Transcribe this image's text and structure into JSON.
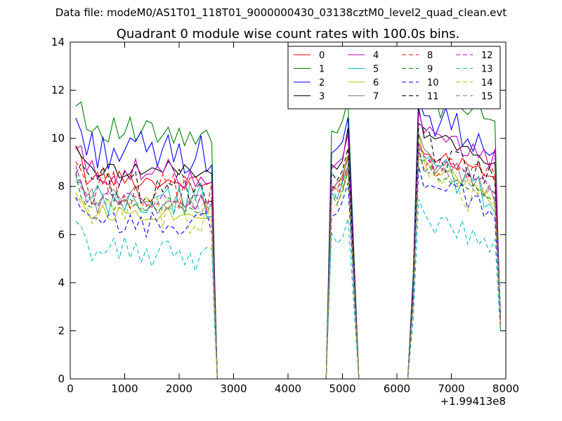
{
  "chart_data": {
    "type": "line",
    "suptitle": "Data file: modeM0/AS1T01_118T01_9000000430_03138cztM0_level2_quad_clean.evt",
    "title": "Quadrant 0 module wise count rates with 100.0s bins.",
    "xlabel": "",
    "ylabel": "",
    "x_offset_label": "+1.99413e8",
    "xlim": [
      0,
      8000
    ],
    "ylim": [
      0,
      14
    ],
    "xticks": [
      "0",
      "1000",
      "2000",
      "3000",
      "4000",
      "5000",
      "6000",
      "7000",
      "8000"
    ],
    "yticks": [
      "0",
      "2",
      "4",
      "6",
      "8",
      "10",
      "12",
      "14"
    ],
    "legend_position": "top-right",
    "legend_columns": 4,
    "series": [
      {
        "name": "0",
        "color": "#ff0000",
        "dash": "solid",
        "level_a": 8.4,
        "level_b": 8.1,
        "level_c": 9.4,
        "level_d": 8.6
      },
      {
        "name": "1",
        "color": "#008000",
        "dash": "solid",
        "level_a": 10.6,
        "level_b": 9.8,
        "level_c": 11.6,
        "level_d": 10.8
      },
      {
        "name": "2",
        "color": "#0000ff",
        "dash": "solid",
        "level_a": 9.6,
        "level_b": 9.3,
        "level_c": 11.0,
        "level_d": 9.8
      },
      {
        "name": "3",
        "color": "#000000",
        "dash": "solid",
        "level_a": 8.7,
        "level_b": 8.7,
        "level_c": 10.4,
        "level_d": 9.0
      },
      {
        "name": "4",
        "color": "#bf00bf",
        "dash": "solid",
        "level_a": 8.6,
        "level_b": 8.5,
        "level_c": 10.2,
        "level_d": 9.1
      },
      {
        "name": "5",
        "color": "#00bfbf",
        "dash": "solid",
        "level_a": 7.2,
        "level_b": 7.5,
        "level_c": 9.0,
        "level_d": 7.6
      },
      {
        "name": "6",
        "color": "#bfbf00",
        "dash": "solid",
        "level_a": 6.9,
        "level_b": 6.9,
        "level_c": 9.3,
        "level_d": 7.4
      },
      {
        "name": "7",
        "color": "#808080",
        "dash": "solid",
        "level_a": 7.5,
        "level_b": 7.4,
        "level_c": 9.3,
        "level_d": 7.8
      },
      {
        "name": "8",
        "color": "#ff0000",
        "dash": "dashed",
        "level_a": 8.0,
        "level_b": 7.7,
        "level_c": 9.0,
        "level_d": 8.2
      },
      {
        "name": "9",
        "color": "#008000",
        "dash": "dashed",
        "level_a": 7.3,
        "level_b": 7.2,
        "level_c": 8.7,
        "level_d": 7.6
      },
      {
        "name": "10",
        "color": "#0000ff",
        "dash": "dashed",
        "level_a": 6.4,
        "level_b": 6.4,
        "level_c": 8.3,
        "level_d": 7.0
      },
      {
        "name": "11",
        "color": "#000000",
        "dash": "dashed",
        "level_a": 8.1,
        "level_b": 8.0,
        "level_c": 9.8,
        "level_d": 8.4
      },
      {
        "name": "12",
        "color": "#bf00bf",
        "dash": "dashed",
        "level_a": 7.6,
        "level_b": 7.3,
        "level_c": 9.2,
        "level_d": 8.0
      },
      {
        "name": "13",
        "color": "#00bfbf",
        "dash": "dashed",
        "level_a": 5.5,
        "level_b": 5.0,
        "level_c": 6.6,
        "level_d": 5.7
      },
      {
        "name": "14",
        "color": "#bfbf00",
        "dash": "dashed",
        "level_a": 7.0,
        "level_b": 6.6,
        "level_c": 8.6,
        "level_d": 7.2
      },
      {
        "name": "15",
        "color": "#808080",
        "dash": "dashed",
        "level_a": 7.4,
        "level_b": 7.1,
        "level_c": 9.0,
        "level_d": 7.6
      }
    ],
    "segments": {
      "block1_x": [
        100,
        2600
      ],
      "drop1_x": 2700,
      "zero1_x": [
        2700,
        4700
      ],
      "peak_x": [
        4800,
        5100
      ],
      "zero2_x": [
        5300,
        6200
      ],
      "block2_x": [
        6400,
        7800
      ],
      "end_x": 7900
    }
  }
}
